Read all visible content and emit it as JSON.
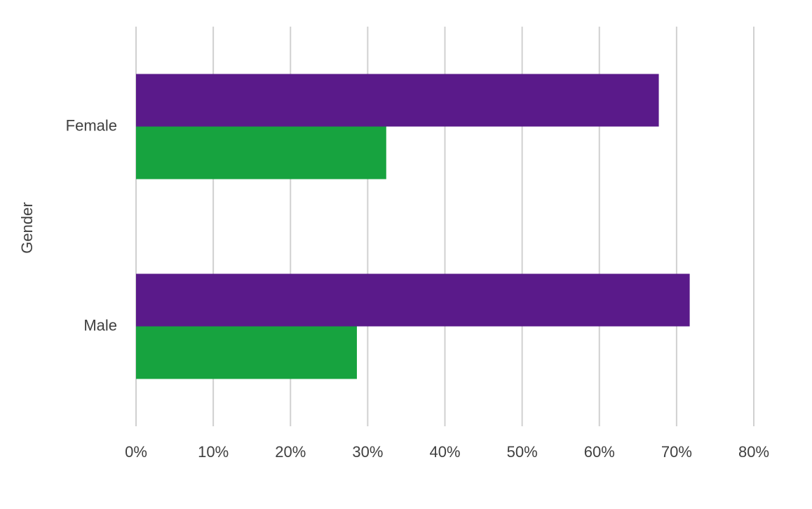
{
  "chart_data": {
    "type": "hbar",
    "y_label": "Gender",
    "categories": [
      "Female",
      "Male"
    ],
    "series": [
      {
        "color": "#5a1a8a",
        "values": [
          67.7,
          71.7
        ]
      },
      {
        "color": "#17a33f",
        "values": [
          32.4,
          28.6
        ]
      }
    ],
    "xlim": [
      0,
      80
    ],
    "xticks": [
      {
        "value": 0,
        "label": "0%"
      },
      {
        "value": 10,
        "label": "10%"
      },
      {
        "value": 20,
        "label": "20%"
      },
      {
        "value": 30,
        "label": "30%"
      },
      {
        "value": 40,
        "label": "40%"
      },
      {
        "value": 50,
        "label": "50%"
      },
      {
        "value": 60,
        "label": "60%"
      },
      {
        "value": 70,
        "label": "70%"
      },
      {
        "value": 80,
        "label": "80%"
      }
    ],
    "grid": true
  }
}
